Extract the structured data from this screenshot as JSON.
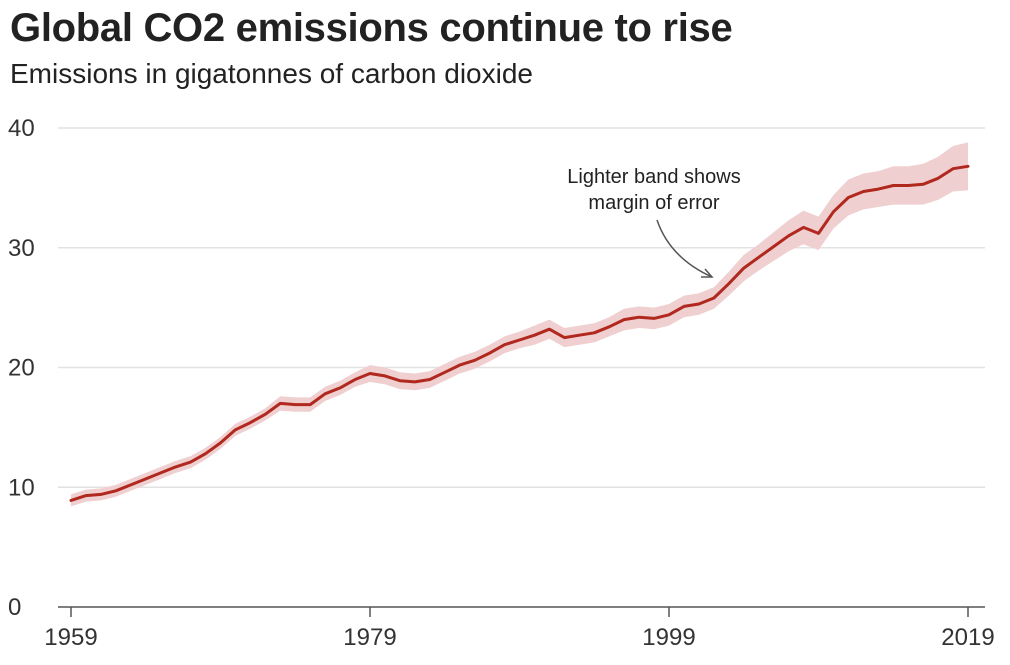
{
  "title": "Global CO2 emissions continue to rise",
  "subtitle": "Emissions in gigatonnes of carbon dioxide",
  "annotation": {
    "line1": "Lighter band shows",
    "line2": "margin of error"
  },
  "colors": {
    "line": "#b0281e",
    "band": "#efcfcf",
    "grid": "#e2e2e2",
    "axis": "#555555"
  },
  "chart_data": {
    "type": "line",
    "title": "Global CO2 emissions continue to rise",
    "subtitle": "Emissions in gigatonnes of carbon dioxide",
    "xlabel": "",
    "ylabel": "",
    "xlim": [
      1959,
      2019
    ],
    "ylim": [
      0,
      40
    ],
    "x_ticks": [
      1959,
      1979,
      1999,
      2019
    ],
    "y_ticks": [
      0,
      10,
      20,
      30,
      40
    ],
    "grid": true,
    "x": [
      1959,
      1960,
      1961,
      1962,
      1963,
      1964,
      1965,
      1966,
      1967,
      1968,
      1969,
      1970,
      1971,
      1972,
      1973,
      1974,
      1975,
      1976,
      1977,
      1978,
      1979,
      1980,
      1981,
      1982,
      1983,
      1984,
      1985,
      1986,
      1987,
      1988,
      1989,
      1990,
      1991,
      1992,
      1993,
      1994,
      1995,
      1996,
      1997,
      1998,
      1999,
      2000,
      2001,
      2002,
      2003,
      2004,
      2005,
      2006,
      2007,
      2008,
      2009,
      2010,
      2011,
      2012,
      2013,
      2014,
      2015,
      2016,
      2017,
      2018,
      2019
    ],
    "series": [
      {
        "values": [
          8.9,
          9.3,
          9.4,
          9.7,
          10.2,
          10.7,
          11.2,
          11.7,
          12.1,
          12.8,
          13.7,
          14.8,
          15.4,
          16.1,
          17.0,
          16.9,
          16.9,
          17.8,
          18.3,
          19.0,
          19.5,
          19.3,
          18.9,
          18.8,
          19.0,
          19.6,
          20.2,
          20.6,
          21.2,
          21.9,
          22.3,
          22.7,
          23.2,
          22.5,
          22.7,
          22.9,
          23.4,
          24.0,
          24.2,
          24.1,
          24.4,
          25.1,
          25.3,
          25.8,
          27.0,
          28.3,
          29.2,
          30.1,
          31.0,
          31.7,
          31.2,
          33.0,
          34.2,
          34.7,
          34.9,
          35.2,
          35.2,
          35.3,
          35.8,
          36.6,
          36.8
        ]
      }
    ],
    "error_margin": [
      0.5,
      0.5,
      0.5,
      0.5,
      0.5,
      0.5,
      0.5,
      0.5,
      0.5,
      0.5,
      0.5,
      0.5,
      0.5,
      0.5,
      0.6,
      0.6,
      0.6,
      0.6,
      0.6,
      0.6,
      0.7,
      0.7,
      0.7,
      0.7,
      0.7,
      0.7,
      0.7,
      0.7,
      0.7,
      0.7,
      0.7,
      0.8,
      0.8,
      0.8,
      0.8,
      0.8,
      0.8,
      0.9,
      0.9,
      0.9,
      0.9,
      0.9,
      0.9,
      0.9,
      1.0,
      1.1,
      1.1,
      1.2,
      1.3,
      1.4,
      1.4,
      1.4,
      1.5,
      1.5,
      1.5,
      1.6,
      1.6,
      1.7,
      1.8,
      1.9,
      2.0
    ]
  }
}
